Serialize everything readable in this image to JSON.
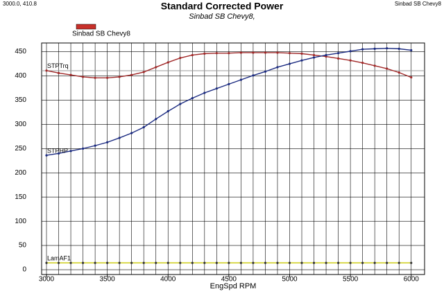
{
  "corner_left": "3000.0, 410.8",
  "corner_right": "Sinbad SB Chevy8",
  "chart_data": {
    "type": "line",
    "title": "Standard Corrected Power",
    "subtitle": "Sinbad SB Chevy8,",
    "legend_label": "Sinbad SB Chevy8",
    "legend_color": "#c8302a",
    "x_label": "EngSpd RPM",
    "x": [
      3000,
      3100,
      3200,
      3300,
      3400,
      3500,
      3600,
      3700,
      3800,
      3900,
      4000,
      4100,
      4200,
      4300,
      4400,
      4500,
      4600,
      4700,
      4800,
      4900,
      5000,
      5100,
      5200,
      5300,
      5400,
      5500,
      5600,
      5700,
      5800,
      5900,
      6000
    ],
    "series": [
      {
        "name": "STPTrq",
        "color": "#a02828",
        "values": [
          411,
          406,
          402,
          398,
          396,
          396,
          398,
          402,
          408,
          418,
          428,
          437,
          443,
          446,
          447,
          447,
          448,
          448,
          448,
          448,
          447,
          446,
          443,
          440,
          436,
          432,
          427,
          421,
          415,
          407,
          397
        ]
      },
      {
        "name": "STPHP",
        "color": "#1a2a80",
        "values": [
          236,
          240,
          245,
          250,
          256,
          263,
          272,
          282,
          294,
          311,
          327,
          342,
          354,
          365,
          374,
          383,
          392,
          401,
          409,
          418,
          425,
          432,
          438,
          443,
          447,
          451,
          455,
          456,
          457,
          456,
          453
        ]
      },
      {
        "name": "LamAF1",
        "color": "#c8c800",
        "values": [
          14,
          14,
          14,
          14,
          14,
          14,
          14,
          14,
          14,
          14,
          14,
          14,
          14,
          14,
          14,
          14,
          14,
          14,
          14,
          14,
          14,
          14,
          14,
          14,
          14,
          14,
          14,
          14,
          14,
          14,
          14
        ]
      }
    ],
    "xlim": [
      2960,
      6110
    ],
    "ylim": [
      -10,
      468
    ],
    "xticks": [
      3000,
      3500,
      4000,
      4500,
      5000,
      5500,
      6000
    ],
    "yticks": [
      0,
      50,
      100,
      150,
      200,
      250,
      300,
      350,
      400,
      450
    ],
    "cursor_y": 410.8,
    "grid": true
  }
}
